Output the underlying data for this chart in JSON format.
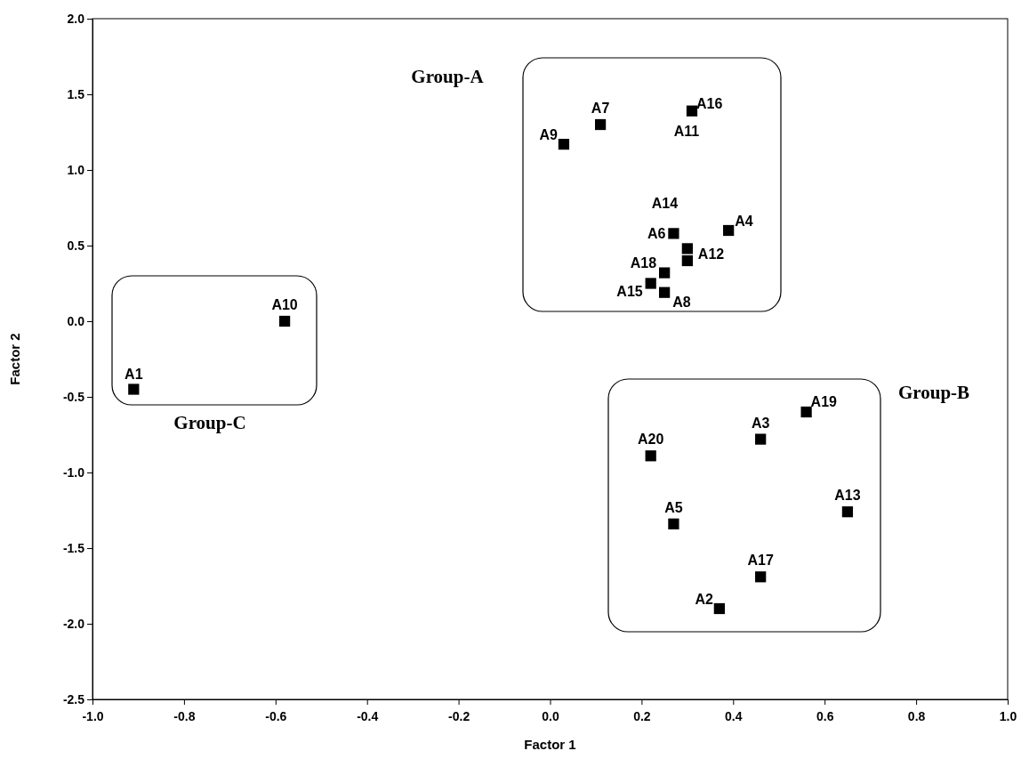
{
  "chart_data": {
    "type": "scatter",
    "xlabel": "Factor 1",
    "ylabel": "Factor 2",
    "xlim": [
      -1.0,
      1.0
    ],
    "ylim": [
      -2.5,
      2.0
    ],
    "xticks": [
      {
        "value": -1.0,
        "label": "-1.0"
      },
      {
        "value": -0.8,
        "label": "-0.8"
      },
      {
        "value": -0.6,
        "label": "-0.6"
      },
      {
        "value": -0.4,
        "label": "-0.4"
      },
      {
        "value": -0.2,
        "label": "-0.2"
      },
      {
        "value": 0.0,
        "label": "0.0"
      },
      {
        "value": 0.2,
        "label": "0.2"
      },
      {
        "value": 0.4,
        "label": "0.4"
      },
      {
        "value": 0.6,
        "label": "0.6"
      },
      {
        "value": 0.8,
        "label": "0.8"
      },
      {
        "value": 1.0,
        "label": "1.0"
      }
    ],
    "yticks": [
      {
        "value": -2.5,
        "label": "-2.5"
      },
      {
        "value": -2.0,
        "label": "-2.0"
      },
      {
        "value": -1.5,
        "label": "-1.5"
      },
      {
        "value": -1.0,
        "label": "-1.0"
      },
      {
        "value": -0.5,
        "label": "-0.5"
      },
      {
        "value": 0.0,
        "label": "0.0"
      },
      {
        "value": 0.5,
        "label": "0.5"
      },
      {
        "value": 1.0,
        "label": "1.0"
      },
      {
        "value": 1.5,
        "label": "1.5"
      },
      {
        "value": 2.0,
        "label": "2.0"
      }
    ],
    "marker": "square",
    "series": [
      {
        "color": "#000000",
        "x": [
          -0.91,
          0.37,
          0.46,
          0.39,
          0.27,
          0.11,
          0.25,
          0.03,
          -0.58,
          0.31,
          0.3,
          0.65,
          0.27,
          0.22,
          0.46,
          0.25,
          0.56,
          0.22,
          0.3
        ],
        "values": [
          -0.45,
          -1.9,
          -0.78,
          0.6,
          -1.34,
          1.3,
          0.19,
          1.17,
          0.0,
          1.39,
          0.48,
          -1.26,
          0.58,
          0.25,
          -1.69,
          0.32,
          -0.6,
          -0.89,
          0.4
        ]
      }
    ],
    "annotations": [
      {
        "text": "A1",
        "x": -0.91,
        "y": -0.45
      },
      {
        "text": "A2",
        "x": 0.37,
        "y": -1.9
      },
      {
        "text": "A3",
        "x": 0.46,
        "y": -0.78
      },
      {
        "text": "A4",
        "x": 0.39,
        "y": 0.6
      },
      {
        "text": "A5",
        "x": 0.27,
        "y": -1.34
      },
      {
        "text": "A6",
        "x": 0.27,
        "y": 0.55
      },
      {
        "text": "A7",
        "x": 0.11,
        "y": 1.3
      },
      {
        "text": "A8",
        "x": 0.25,
        "y": 0.19
      },
      {
        "text": "A9",
        "x": 0.03,
        "y": 1.17
      },
      {
        "text": "A10",
        "x": -0.58,
        "y": 0.0
      },
      {
        "text": "A11",
        "x": 0.31,
        "y": 1.39
      },
      {
        "text": "A12",
        "x": 0.3,
        "y": 0.48
      },
      {
        "text": "A13",
        "x": 0.65,
        "y": -1.26
      },
      {
        "text": "A14",
        "x": 0.27,
        "y": 0.58
      },
      {
        "text": "A15",
        "x": 0.22,
        "y": 0.25
      },
      {
        "text": "A16",
        "x": 0.31,
        "y": 1.39
      },
      {
        "text": "A17",
        "x": 0.46,
        "y": -1.69
      },
      {
        "text": "A18",
        "x": 0.25,
        "y": 0.32
      },
      {
        "text": "A19",
        "x": 0.56,
        "y": -0.6
      },
      {
        "text": "A20",
        "x": 0.22,
        "y": -0.89
      },
      "Group-A",
      "Group-B",
      "Group-C"
    ]
  }
}
